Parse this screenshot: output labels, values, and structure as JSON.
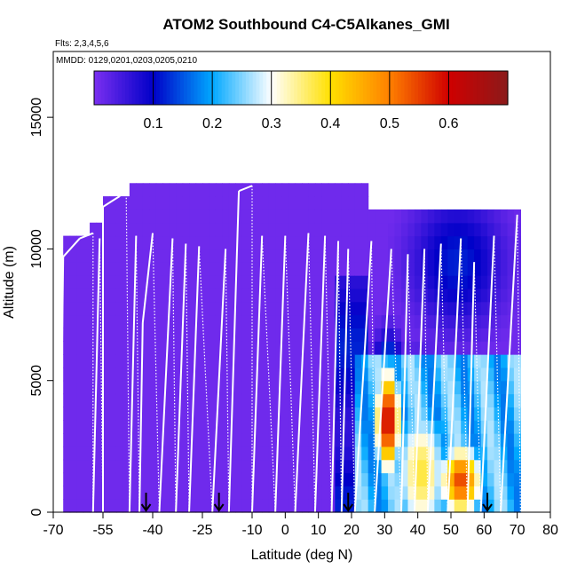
{
  "chart_data": {
    "type": "heatmap",
    "title": "ATOM2 Southbound C4-C5Alkanes_GMI",
    "subtitle_flights": "Flts: 2,3,4,5,6",
    "subtitle_dates": "MMDD: 0129,0201,0203,0205,0210",
    "xlabel": "Latitude (deg N)",
    "ylabel": "Altitude (m)",
    "xlim": [
      -70,
      80
    ],
    "ylim": [
      0,
      17500
    ],
    "x_ticks": [
      -70,
      -55,
      -40,
      -25,
      -10,
      0,
      10,
      20,
      30,
      40,
      50,
      60,
      70,
      80
    ],
    "x_tick_labels": [
      "-70",
      "-55",
      "-40",
      "-25",
      "-10",
      "0",
      "10",
      "20",
      "30",
      "40",
      "50",
      "60",
      "70",
      "80"
    ],
    "y_ticks": [
      0,
      5000,
      10000,
      15000
    ],
    "y_tick_labels": [
      "0",
      "5000",
      "10000",
      "15000"
    ],
    "colorbar": {
      "range": [
        0.0,
        0.7
      ],
      "ticks": [
        0.1,
        0.2,
        0.3,
        0.4,
        0.5,
        0.6
      ],
      "tick_labels": [
        "0.1",
        "0.2",
        "0.3",
        "0.4",
        "0.5",
        "0.6"
      ],
      "colors": [
        "#7b2ff0",
        "#0000c8",
        "#00a8ff",
        "#ffffff",
        "#ffe000",
        "#ff8000",
        "#d00000",
        "#8b1a1a"
      ]
    },
    "arrows_latitude": [
      -42,
      -20,
      19,
      61
    ],
    "hotspots": [
      {
        "lat": 31,
        "alt": 3500,
        "value": 0.62,
        "lat_halfwidth": 4,
        "alt_halfwidth": 2200
      },
      {
        "lat": 53,
        "alt": 1200,
        "value": 0.55,
        "lat_halfwidth": 7,
        "alt_halfwidth": 1500
      },
      {
        "lat": 41,
        "alt": 1500,
        "value": 0.38,
        "lat_halfwidth": 9,
        "alt_halfwidth": 3000
      },
      {
        "lat": 52,
        "alt": 9500,
        "value": 0.12,
        "lat_halfwidth": 14,
        "alt_halfwidth": 2500
      }
    ],
    "flight_track": [
      [
        -68,
        9000
      ],
      [
        -68,
        0
      ],
      [
        -67,
        9700
      ],
      [
        -62,
        10400
      ],
      [
        -58,
        10600
      ],
      [
        -58,
        0
      ],
      [
        -56,
        10400
      ],
      [
        -55,
        0
      ],
      [
        -55,
        11600
      ],
      [
        -50,
        12000
      ],
      [
        -48,
        12300
      ],
      [
        -47,
        0
      ],
      [
        -45,
        10500
      ],
      [
        -44,
        0
      ],
      [
        -43,
        7200
      ],
      [
        -40,
        10600
      ],
      [
        -38,
        0
      ],
      [
        -34,
        10400
      ],
      [
        -33,
        0
      ],
      [
        -30,
        10200
      ],
      [
        -29,
        0
      ],
      [
        -26,
        10100
      ],
      [
        -22,
        0
      ],
      [
        -18,
        10000
      ],
      [
        -17,
        0
      ],
      [
        -14,
        12200
      ],
      [
        -10,
        12400
      ],
      [
        -10,
        0
      ],
      [
        -7,
        10500
      ],
      [
        -3,
        0
      ],
      [
        0,
        10500
      ],
      [
        3,
        0
      ],
      [
        7,
        10600
      ],
      [
        9,
        0
      ],
      [
        12,
        10500
      ],
      [
        14,
        0
      ],
      [
        16,
        10300
      ],
      [
        17,
        0
      ],
      [
        19,
        10000
      ],
      [
        21,
        0
      ],
      [
        26,
        10300
      ],
      [
        27,
        0
      ],
      [
        32,
        10000
      ],
      [
        35,
        0
      ],
      [
        37,
        9800
      ],
      [
        39,
        0
      ],
      [
        42,
        10000
      ],
      [
        43,
        0
      ],
      [
        47,
        10200
      ],
      [
        49,
        0
      ],
      [
        53,
        10400
      ],
      [
        55,
        0
      ],
      [
        57,
        9500
      ],
      [
        59,
        0
      ],
      [
        63,
        10500
      ],
      [
        65,
        0
      ],
      [
        70,
        11300
      ],
      [
        71,
        0
      ]
    ]
  }
}
